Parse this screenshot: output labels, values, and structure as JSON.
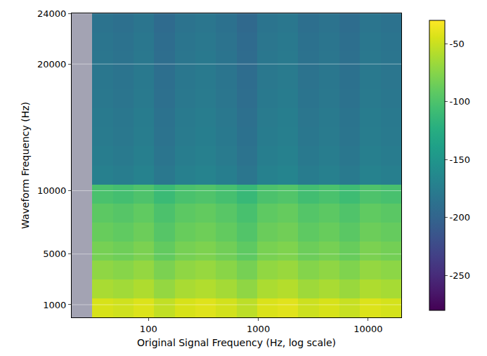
{
  "chart_data": {
    "type": "heatmap",
    "x_label": "Original Signal Frequency (Hz, log scale)",
    "y_label": "Waveform Frequency (Hz)",
    "log": "x",
    "grid": "y",
    "xlim": [
      20,
      20000
    ],
    "xticks": [
      100,
      1000,
      10000
    ],
    "ylim": [
      0,
      24000
    ],
    "yticks": [
      1000,
      5000,
      10000,
      20000,
      24000
    ],
    "x_bins": [
      20,
      30.8,
      47.4,
      73,
      112.5,
      173.2,
      266.7,
      410.7,
      632.5,
      974,
      1500,
      2310,
      3557,
      5477,
      8434,
      12988,
      20000
    ],
    "y_bins": [
      0,
      1500,
      3000,
      4500,
      6000,
      7500,
      9000,
      10500,
      12000,
      13500,
      15000,
      16500,
      18000,
      19500,
      21000,
      22500,
      24000
    ],
    "cells": [
      [
        null,
        -45,
        -48,
        -43,
        -53,
        -45,
        -42,
        -47,
        -55,
        -44,
        -41,
        -49,
        -45,
        -51,
        -43,
        -46
      ],
      [
        null,
        -62,
        -65,
        -60,
        -70,
        -62,
        -59,
        -64,
        -72,
        -61,
        -58,
        -66,
        -62,
        -68,
        -60,
        -63
      ],
      [
        null,
        -72,
        -75,
        -70,
        -80,
        -72,
        -69,
        -74,
        -82,
        -71,
        -68,
        -76,
        -72,
        -78,
        -70,
        -73
      ],
      [
        null,
        -82,
        -85,
        -80,
        -90,
        -82,
        -79,
        -84,
        -92,
        -81,
        -78,
        -86,
        -82,
        -88,
        -80,
        -83
      ],
      [
        null,
        -88,
        -91,
        -86,
        -96,
        -88,
        -85,
        -90,
        -98,
        -87,
        -84,
        -92,
        -88,
        -94,
        -86,
        -89
      ],
      [
        null,
        -93,
        -96,
        -91,
        -101,
        -93,
        -90,
        -95,
        -103,
        -92,
        -89,
        -97,
        -93,
        -99,
        -91,
        -94
      ],
      [
        null,
        -102,
        -105,
        -100,
        -110,
        -102,
        -99,
        -104,
        -112,
        -101,
        -98,
        -106,
        -102,
        -108,
        -100,
        -103
      ],
      [
        null,
        -172,
        -175,
        -170,
        -180,
        -172,
        -169,
        -174,
        -182,
        -171,
        -168,
        -176,
        -172,
        -178,
        -170,
        -173
      ],
      [
        null,
        -175,
        -178,
        -173,
        -183,
        -175,
        -172,
        -177,
        -185,
        -174,
        -171,
        -179,
        -175,
        -181,
        -173,
        -176
      ],
      [
        null,
        -177,
        -180,
        -175,
        -185,
        -177,
        -174,
        -179,
        -187,
        -176,
        -173,
        -181,
        -177,
        -183,
        -175,
        -178
      ],
      [
        null,
        -178,
        -181,
        -176,
        -186,
        -178,
        -175,
        -180,
        -188,
        -177,
        -174,
        -182,
        -178,
        -184,
        -176,
        -179
      ],
      [
        null,
        -180,
        -183,
        -178,
        -188,
        -180,
        -177,
        -182,
        -190,
        -179,
        -176,
        -184,
        -180,
        -186,
        -178,
        -181
      ],
      [
        null,
        -181,
        -184,
        -179,
        -189,
        -181,
        -178,
        -183,
        -191,
        -180,
        -177,
        -185,
        -181,
        -187,
        -179,
        -182
      ],
      [
        null,
        -182,
        -185,
        -180,
        -190,
        -182,
        -179,
        -184,
        -192,
        -181,
        -178,
        -186,
        -182,
        -188,
        -180,
        -183
      ],
      [
        null,
        -183,
        -186,
        -181,
        -191,
        -183,
        -180,
        -185,
        -193,
        -182,
        -179,
        -187,
        -183,
        -189,
        -181,
        -184
      ],
      [
        null,
        -185,
        -188,
        -183,
        -193,
        -185,
        -182,
        -187,
        -195,
        -184,
        -181,
        -189,
        -185,
        -191,
        -183,
        -186
      ]
    ],
    "colorbar_range": [
      -280,
      -30
    ],
    "colorbar_ticks": [
      -250,
      -200,
      -150,
      -100,
      -50
    ]
  }
}
